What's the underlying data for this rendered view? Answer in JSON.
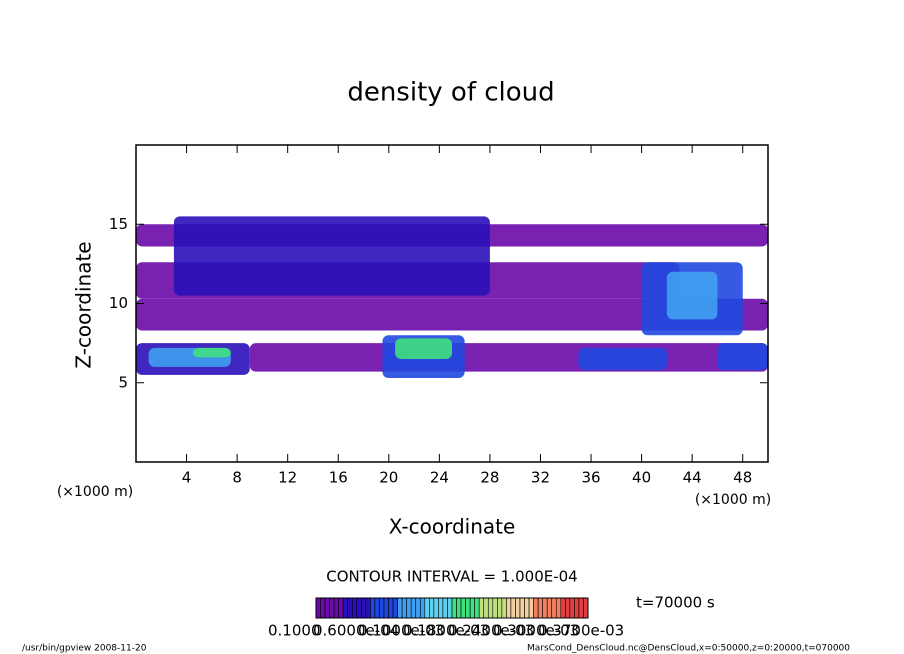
{
  "chart_data": {
    "type": "contour",
    "title": "density of cloud",
    "x_label": "X-coordinate",
    "y_label": "Z-coordinate",
    "x_unit": "(×1000 m)",
    "y_unit": "(×1000 m)",
    "xlim": [
      0,
      50
    ],
    "xticks": [
      4,
      8,
      12,
      16,
      20,
      24,
      28,
      32,
      36,
      40,
      44,
      48
    ],
    "ylim": [
      0,
      20
    ],
    "yticks": [
      5,
      10,
      15
    ],
    "regions": [
      {
        "x": [
          0,
          50
        ],
        "z": [
          13.6,
          15
        ],
        "level": 0
      },
      {
        "x": [
          0,
          43
        ],
        "z": [
          10.3,
          12.6
        ],
        "level": 0
      },
      {
        "x": [
          0,
          50
        ],
        "z": [
          8.3,
          10.3
        ],
        "level": 0
      },
      {
        "x": [
          3,
          28
        ],
        "z": [
          10.5,
          15.5
        ],
        "level": 1
      },
      {
        "x": [
          40,
          48
        ],
        "z": [
          8,
          12.6
        ],
        "level": 2
      },
      {
        "x": [
          42,
          46
        ],
        "z": [
          9,
          12
        ],
        "level": 3
      },
      {
        "x": [
          9,
          50
        ],
        "z": [
          5.7,
          7.5
        ],
        "level": 0
      },
      {
        "x": [
          0,
          9
        ],
        "z": [
          5.5,
          7.5
        ],
        "level": 1
      },
      {
        "x": [
          1,
          7.5
        ],
        "z": [
          6,
          7.2
        ],
        "level": 3
      },
      {
        "x": [
          19.5,
          26
        ],
        "z": [
          5.3,
          8
        ],
        "level": 2
      },
      {
        "x": [
          35,
          42
        ],
        "z": [
          5.8,
          7.2
        ],
        "level": 2
      },
      {
        "x": [
          46,
          50
        ],
        "z": [
          5.8,
          7.5
        ],
        "level": 2
      },
      {
        "x": [
          20.5,
          25
        ],
        "z": [
          6.5,
          7.8
        ],
        "level": 5
      },
      {
        "x": [
          4.5,
          7.5
        ],
        "z": [
          6.6,
          7.2
        ],
        "level": 5
      }
    ],
    "colorbar": {
      "colors": [
        "#6a0aa8",
        "#2a10b8",
        "#2048e0",
        "#40a0f0",
        "#60d0f0",
        "#40e080",
        "#c0e080",
        "#f0d0a0",
        "#f08060",
        "#e04040"
      ],
      "labels": [
        "0.1000",
        "0.6000e-04",
        "0.1000e-03",
        "0.1800e-03",
        "0.2400e-03",
        "0.3000e-03",
        "0.3700e-03"
      ]
    },
    "contour_interval": "CONTOUR INTERVAL = 1.000E-04",
    "time_label": "t=70000 s",
    "footer_left": "/usr/bin/gpview  2008-11-20",
    "footer_right": "MarsCond_DensCloud.nc@DensCloud,x=0:50000,z=0:20000,t=070000"
  }
}
